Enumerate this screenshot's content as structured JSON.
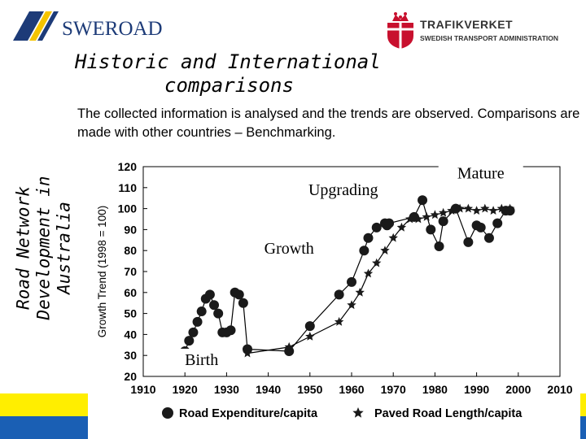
{
  "header": {
    "swe_logo_text": "SWEROAD",
    "tv_name": "TRAFIKVERKET",
    "tv_sub": "SWEDISH TRANSPORT ADMINISTRATION",
    "title_line1": "Historic and International",
    "title_line2": "comparisons",
    "subtitle": "The collected information is analysed and the trends are observed. Comparisons are made with other countries – Benchmarking.",
    "side_label": "Road Network Development in Australia"
  },
  "colors": {
    "swe_blue": "#1d3b78",
    "swe_yellow": "#f5c400",
    "tv_red": "#c8102e",
    "strip_yellow": "#ffee00",
    "strip_blue": "#1a5fb4"
  },
  "chart_data": {
    "type": "line",
    "title": "",
    "xlabel": "",
    "ylabel": "Growth Trend (1998 = 100)",
    "xlim": [
      1910,
      2010
    ],
    "ylim": [
      20,
      120
    ],
    "xticks": [
      "1910",
      "1920",
      "1930",
      "1940",
      "1950",
      "1960",
      "1970",
      "1980",
      "1990",
      "2000",
      "2010"
    ],
    "yticks": [
      "20",
      "30",
      "40",
      "50",
      "60",
      "70",
      "80",
      "90",
      "100",
      "110",
      "120"
    ],
    "annotations": [
      {
        "text": "Mature",
        "x": 1991,
        "y": 116
      },
      {
        "text": "Upgrading",
        "x": 1958,
        "y": 108
      },
      {
        "text": "Growth",
        "x": 1945,
        "y": 80
      },
      {
        "text": "Birth",
        "x": 1924,
        "y": 27
      }
    ],
    "series": [
      {
        "name": "Road Expenditure/capita",
        "marker": "circle",
        "x": [
          1919,
          1920,
          1921,
          1922,
          1923,
          1924,
          1925,
          1926,
          1927,
          1928,
          1929,
          1930,
          1931,
          1932,
          1933,
          1934,
          1935,
          1945,
          1950,
          1957,
          1960,
          1963,
          1964,
          1966,
          1968,
          1968.5,
          1969,
          1975,
          1977,
          1979,
          1981,
          1982,
          1985,
          1988,
          1990,
          1991,
          1993,
          1995,
          1997,
          1998
        ],
        "y": [
          30,
          32,
          37,
          41,
          46,
          51,
          57,
          59,
          54,
          50,
          41,
          41,
          42,
          60,
          59,
          55,
          33,
          32,
          44,
          59,
          65,
          80,
          86,
          91,
          93,
          92,
          93,
          96,
          104,
          90,
          82,
          94,
          100,
          84,
          92,
          91,
          86,
          93,
          99,
          99
        ],
        "labels": [
          "Road Expenditure/capita",
          "Paved Road Length/capita"
        ]
      },
      {
        "name": "Paved Road Length/capita",
        "marker": "star",
        "x": [
          1935,
          1945,
          1950,
          1957,
          1960,
          1962,
          1964,
          1966,
          1968,
          1970,
          1972,
          1974,
          1976,
          1978,
          1980,
          1982,
          1984,
          1986,
          1988,
          1990,
          1992,
          1994,
          1996,
          1998
        ],
        "y": [
          31,
          34,
          39,
          46,
          54,
          60,
          69,
          74,
          80,
          86,
          91,
          95,
          95,
          96,
          97,
          98,
          99,
          100,
          100,
          99,
          100,
          99,
          100,
          100
        ]
      }
    ],
    "legend": [
      "Road Expenditure/capita",
      "Paved Road Length/capita"
    ],
    "legend_position": "bottom"
  }
}
